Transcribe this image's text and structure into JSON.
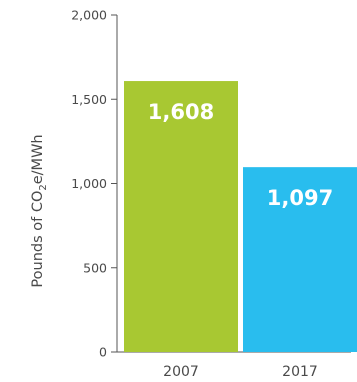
{
  "chart_data": {
    "type": "bar",
    "categories": [
      "2007",
      "2017"
    ],
    "values": [
      1608,
      1097
    ],
    "value_labels": [
      "1,608",
      "1,097"
    ],
    "colors": [
      "#a8c832",
      "#29bdee"
    ],
    "ylabel_main": "Pounds of CO",
    "ylabel_sub": "2",
    "ylabel_rest": "e/MWh",
    "ylim": [
      0,
      2000
    ],
    "yticks": [
      0,
      500,
      1000,
      1500,
      2000
    ],
    "ytick_labels": [
      "0",
      "500",
      "1,000",
      "1,500",
      "2,000"
    ],
    "grid": false,
    "legend": "none"
  }
}
